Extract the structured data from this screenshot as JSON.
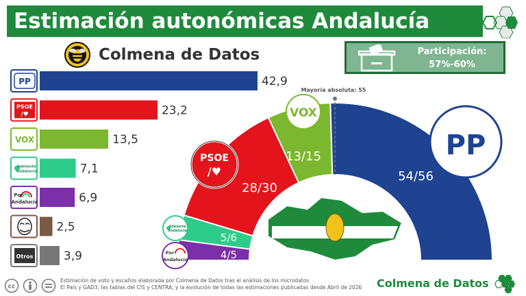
{
  "header": {
    "title": "Estimación autonómicas Andalucía"
  },
  "brand": {
    "name": "Colmena de Datos"
  },
  "turnout": {
    "label": "Participación:",
    "value": "57%-60%"
  },
  "chart_data": [
    {
      "type": "bar",
      "categories": [
        "PP",
        "PSOE",
        "VOX",
        "Adelante Andalucía",
        "Por Andalucía",
        "Otro",
        "Otros"
      ],
      "values": [
        42.9,
        23.2,
        13.5,
        7.1,
        6.9,
        2.5,
        3.9
      ],
      "value_labels": [
        "42,9",
        "23,2",
        "13,5",
        "7,1",
        "6,9",
        "2,5",
        "3,9"
      ],
      "colors": [
        "#1f4391",
        "#e3141b",
        "#7cb82f",
        "#2ecc8a",
        "#7b2fa8",
        "#7a5a45",
        "#777777"
      ],
      "xlim": [
        0,
        42.9
      ]
    },
    {
      "type": "pie",
      "style": "semicircle",
      "categories": [
        "Por Andalucía",
        "Adelante Andalucía",
        "PSOE",
        "VOX",
        "PP"
      ],
      "values": [
        4.5,
        5.5,
        29,
        14,
        55
      ],
      "seat_labels": [
        "4/5",
        "5/6",
        "28/30",
        "13/15",
        "54/56"
      ],
      "colors": [
        "#7b2fa8",
        "#2ecc8a",
        "#e3141b",
        "#7cb82f",
        "#1f4391"
      ],
      "annotation": "Mayoría absoluta: 55"
    }
  ],
  "party_logos": {
    "pp": "PP",
    "psoe_top": "PSOE",
    "psoe_bottom": "/♥",
    "vox": "VOX",
    "adelante_top": "Adelante",
    "adelante_bottom": "Andalucía",
    "por_top": "Por",
    "por_bottom": "Andalucía",
    "otros": "Otros"
  },
  "footer": {
    "line1": "Estimación de voto y escaños elaborada por Colmena de Datos tras el análisis de los microdatos",
    "line2": "El País y GAD3, las tablas del CIS y CENTRA, y la evolución de todas las estimaciones publicadas desde Abril  de 2026",
    "brand": "Colmena de Datos"
  },
  "icons": [
    "hexagon-logo-icon",
    "bee-logo-icon",
    "ballot-box-icon",
    "andalucia-map-icon",
    "cc-icon",
    "by-icon",
    "nd-icon"
  ]
}
